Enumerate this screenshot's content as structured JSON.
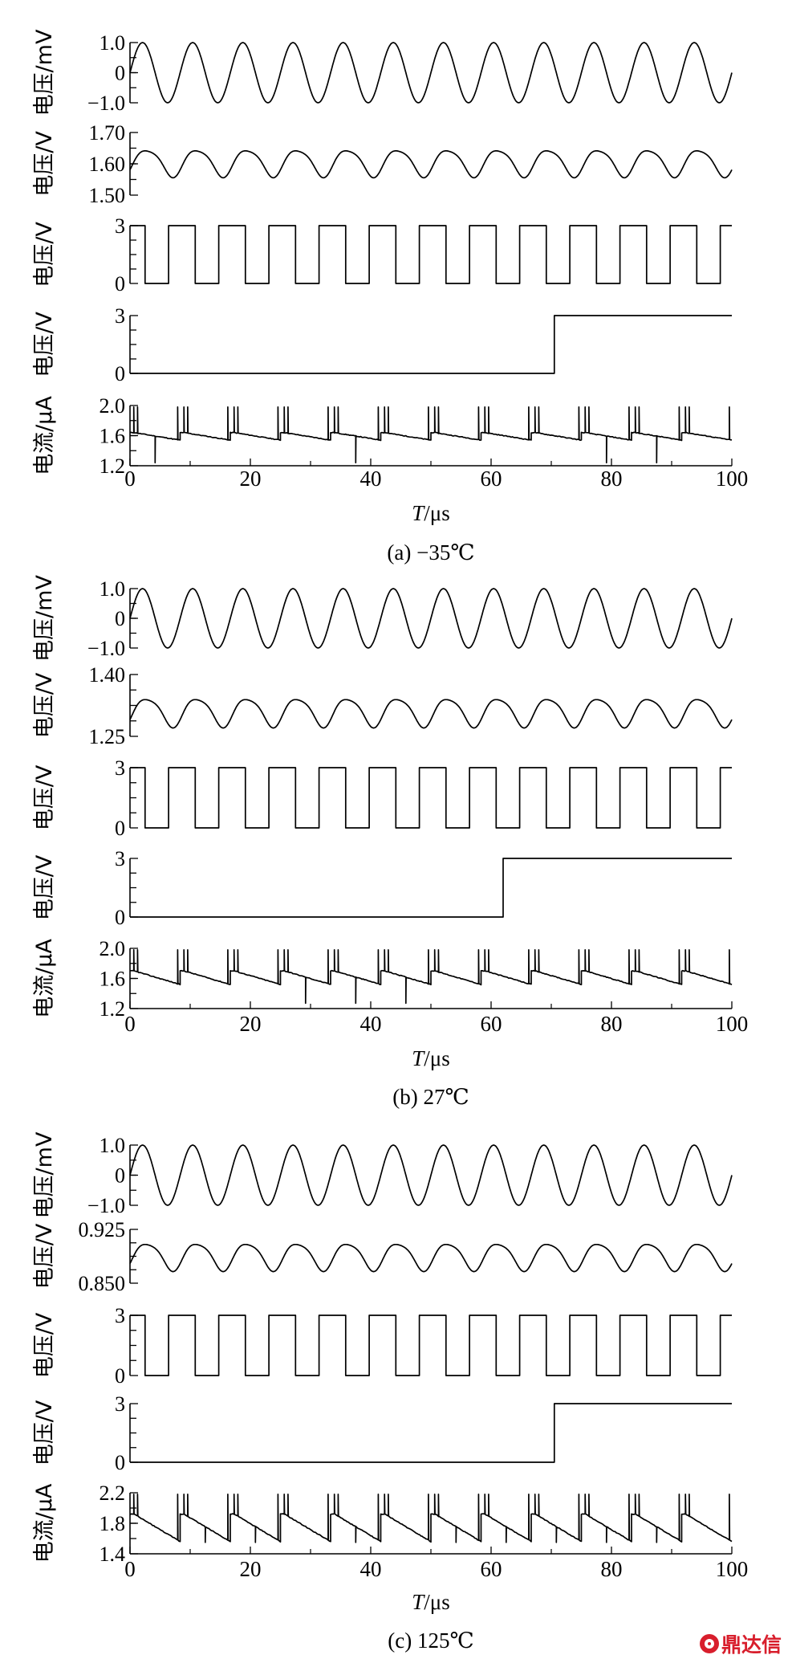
{
  "chart_data": [
    {
      "caption": "(a) −35℃",
      "xlabel_italic": "T",
      "xlabel_unit": "/μs",
      "xlim": [
        0,
        100
      ],
      "xticks": [
        "0",
        "20",
        "40",
        "60",
        "80",
        "100"
      ],
      "panels": [
        {
          "type": "line",
          "ylabel": "电压/mV",
          "ylim": [
            -1.0,
            1.0
          ],
          "yticks": [
            "1.0",
            "0",
            "−1.0"
          ],
          "signal": "sine",
          "cycles": 12,
          "phase": 0
        },
        {
          "type": "line",
          "ylabel": "电压/V",
          "ylim": [
            1.5,
            1.7
          ],
          "yticks": [
            "1.70",
            "1.60",
            "1.50"
          ],
          "signal": "ripple",
          "cycles": 12,
          "mean": 1.605,
          "amplitude": 0.05
        },
        {
          "type": "line",
          "ylabel": "电压/V",
          "ylim": [
            0,
            3
          ],
          "yticks": [
            "3",
            "0"
          ],
          "signal": "square",
          "cycles": 12,
          "high": 3,
          "low": 0
        },
        {
          "type": "line",
          "ylabel": "电压/V",
          "ylim": [
            0,
            3
          ],
          "yticks": [
            "3",
            "0"
          ],
          "signal": "step",
          "step_at": 70.5,
          "low": 0,
          "high": 3
        },
        {
          "type": "line",
          "ylabel": "电流/μA",
          "ylim": [
            1.2,
            2.0
          ],
          "yticks": [
            "2.0",
            "1.6",
            "1.2"
          ],
          "signal": "current",
          "cycles": 12,
          "base": 1.64,
          "droop": 0.1,
          "spike_high": 1.98,
          "spike_low": 1.24
        }
      ]
    },
    {
      "caption": "(b) 27℃",
      "xlabel_italic": "T",
      "xlabel_unit": "/μs",
      "xlim": [
        0,
        100
      ],
      "xticks": [
        "0",
        "20",
        "40",
        "60",
        "80",
        "100"
      ],
      "panels": [
        {
          "type": "line",
          "ylabel": "电压/mV",
          "ylim": [
            -1.0,
            1.0
          ],
          "yticks": [
            "1.0",
            "0",
            "−1.0"
          ],
          "signal": "sine",
          "cycles": 12,
          "phase": 0
        },
        {
          "type": "line",
          "ylabel": "电压/V",
          "ylim": [
            1.25,
            1.4
          ],
          "yticks": [
            "1.40",
            "1.25"
          ],
          "signal": "ripple",
          "cycles": 12,
          "mean": 1.31,
          "amplitude": 0.04
        },
        {
          "type": "line",
          "ylabel": "电压/V",
          "ylim": [
            0,
            3
          ],
          "yticks": [
            "3",
            "0"
          ],
          "signal": "square",
          "cycles": 12,
          "high": 3,
          "low": 0
        },
        {
          "type": "line",
          "ylabel": "电压/V",
          "ylim": [
            0,
            3
          ],
          "yticks": [
            "3",
            "0"
          ],
          "signal": "step",
          "step_at": 62,
          "low": 0,
          "high": 3
        },
        {
          "type": "line",
          "ylabel": "电流/μA",
          "ylim": [
            1.2,
            2.0
          ],
          "yticks": [
            "2.0",
            "1.6",
            "1.2"
          ],
          "signal": "current",
          "cycles": 12,
          "base": 1.7,
          "droop": 0.18,
          "spike_high": 1.98,
          "spike_low": 1.27
        }
      ]
    },
    {
      "caption": "(c) 125℃",
      "xlabel_italic": "T",
      "xlabel_unit": "/μs",
      "xlim": [
        0,
        100
      ],
      "xticks": [
        "0",
        "20",
        "40",
        "60",
        "80",
        "100"
      ],
      "panels": [
        {
          "type": "line",
          "ylabel": "电压/mV",
          "ylim": [
            -1.0,
            1.0
          ],
          "yticks": [
            "1.0",
            "0",
            "−1.0"
          ],
          "signal": "sine",
          "cycles": 12,
          "phase": 0
        },
        {
          "type": "line",
          "ylabel": "电压/V",
          "ylim": [
            0.85,
            0.925
          ],
          "yticks": [
            "0.925",
            "0.850"
          ],
          "signal": "ripple",
          "cycles": 12,
          "mean": 0.888,
          "amplitude": 0.022
        },
        {
          "type": "line",
          "ylabel": "电压/V",
          "ylim": [
            0,
            3
          ],
          "yticks": [
            "3",
            "0"
          ],
          "signal": "square",
          "cycles": 12,
          "high": 3,
          "low": 0
        },
        {
          "type": "line",
          "ylabel": "电压/V",
          "ylim": [
            0,
            3
          ],
          "yticks": [
            "3",
            "0"
          ],
          "signal": "step",
          "step_at": 70.5,
          "low": 0,
          "high": 3
        },
        {
          "type": "line",
          "ylabel": "电流/μA",
          "ylim": [
            1.4,
            2.2
          ],
          "yticks": [
            "2.2",
            "1.8",
            "1.4"
          ],
          "signal": "current",
          "cycles": 12,
          "base": 1.92,
          "droop": 0.36,
          "spike_high": 2.18,
          "spike_low": 1.55
        }
      ]
    }
  ],
  "watermark": {
    "text": "鼎达信",
    "color": "#d81e2c"
  }
}
